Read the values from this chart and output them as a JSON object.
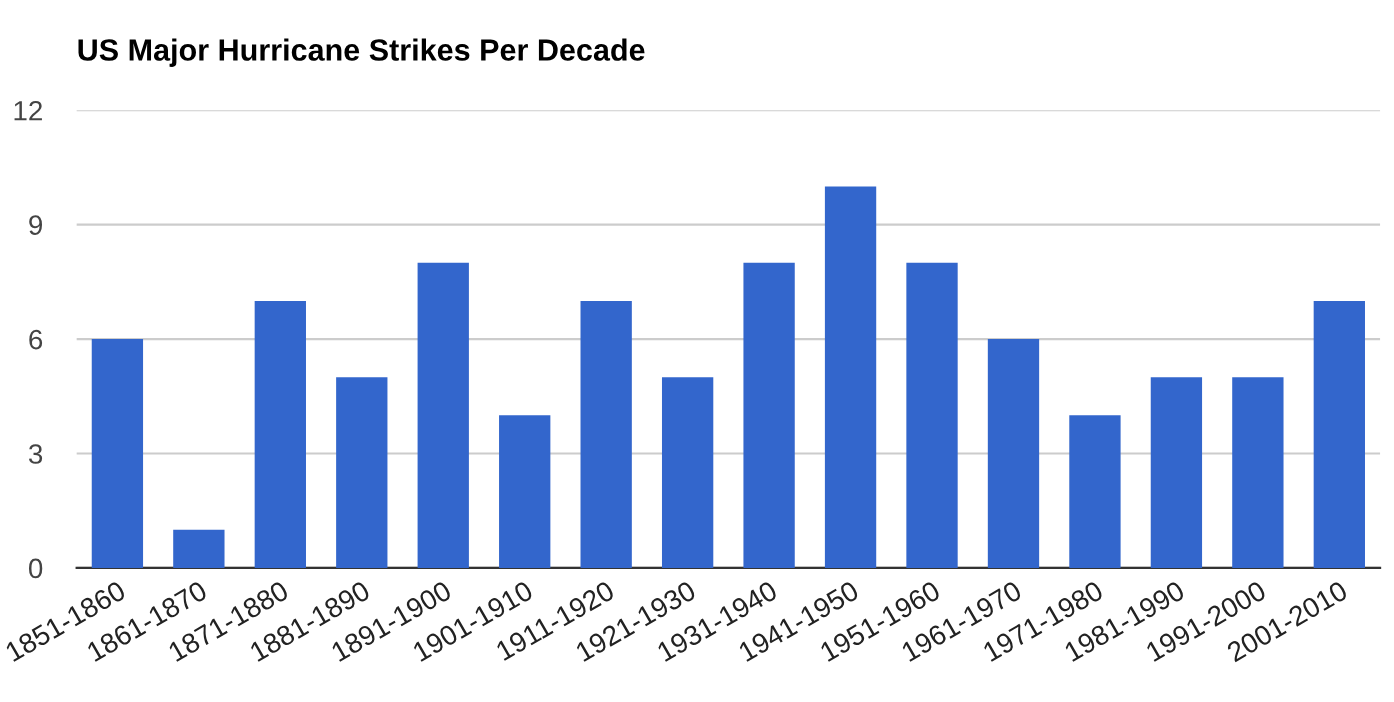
{
  "chart_data": {
    "type": "bar",
    "title": "US Major Hurricane Strikes Per Decade",
    "categories": [
      "1851-1860",
      "1861-1870",
      "1871-1880",
      "1881-1890",
      "1891-1900",
      "1901-1910",
      "1911-1920",
      "1921-1930",
      "1931-1940",
      "1941-1950",
      "1951-1960",
      "1961-1970",
      "1971-1980",
      "1981-1990",
      "1991-2000",
      "2001-2010"
    ],
    "values": [
      6,
      1,
      7,
      5,
      8,
      4,
      7,
      5,
      8,
      10,
      8,
      6,
      4,
      5,
      5,
      7
    ],
    "color": "#3366cc",
    "ylim": [
      0,
      12
    ],
    "yticks": [
      0,
      3,
      6,
      9,
      12
    ],
    "grid": "y"
  }
}
